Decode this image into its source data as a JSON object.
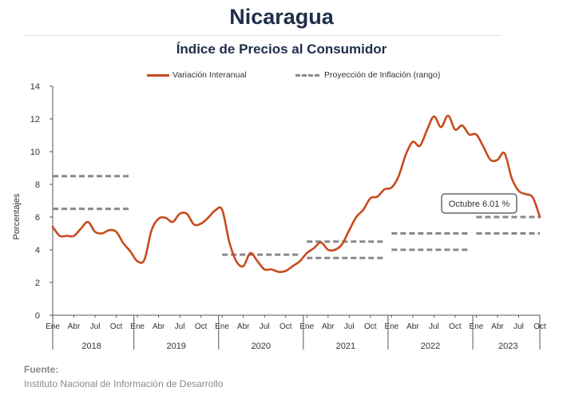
{
  "header": {
    "title": "Nicaragua"
  },
  "source": {
    "label": "Fuente:",
    "text": "Instituto Nacional de Información de  Desarrollo"
  },
  "chart_data": {
    "type": "line",
    "title": "Índice de Precios al Consumidor",
    "ylabel": "Porcentajes",
    "xlabel": "",
    "ylim": [
      0,
      14
    ],
    "yticks": [
      0,
      2,
      4,
      6,
      8,
      10,
      12,
      14
    ],
    "grid": false,
    "legend_placement": "top",
    "x_start": "2018-01",
    "x_end": "2023-10",
    "month_tick_labels": [
      "Ene",
      "Abr",
      "Jul",
      "Oct"
    ],
    "years": [
      "2018",
      "2019",
      "2020",
      "2021",
      "2022",
      "2023"
    ],
    "colors": {
      "series": "#c84a1e",
      "projection": "#888888",
      "axis": "#555555"
    },
    "series": [
      {
        "name": "Variación Interanual",
        "x": [
          "2018-01",
          "2018-02",
          "2018-03",
          "2018-04",
          "2018-05",
          "2018-06",
          "2018-07",
          "2018-08",
          "2018-09",
          "2018-10",
          "2018-11",
          "2018-12",
          "2019-01",
          "2019-02",
          "2019-03",
          "2019-04",
          "2019-05",
          "2019-06",
          "2019-07",
          "2019-08",
          "2019-09",
          "2019-10",
          "2019-11",
          "2019-12",
          "2020-01",
          "2020-02",
          "2020-03",
          "2020-04",
          "2020-05",
          "2020-06",
          "2020-07",
          "2020-08",
          "2020-09",
          "2020-10",
          "2020-11",
          "2020-12",
          "2021-01",
          "2021-02",
          "2021-03",
          "2021-04",
          "2021-05",
          "2021-06",
          "2021-07",
          "2021-08",
          "2021-09",
          "2021-10",
          "2021-11",
          "2021-12",
          "2022-01",
          "2022-02",
          "2022-03",
          "2022-04",
          "2022-05",
          "2022-06",
          "2022-07",
          "2022-08",
          "2022-09",
          "2022-10",
          "2022-11",
          "2022-12",
          "2023-01",
          "2023-02",
          "2023-03",
          "2023-04",
          "2023-05",
          "2023-06",
          "2023-07",
          "2023-08",
          "2023-09",
          "2023-10"
        ],
        "values": [
          5.4,
          4.85,
          4.85,
          4.85,
          5.3,
          5.7,
          5.1,
          5.0,
          5.2,
          5.1,
          4.4,
          3.9,
          3.3,
          3.4,
          5.2,
          5.9,
          5.95,
          5.7,
          6.2,
          6.2,
          5.55,
          5.6,
          5.95,
          6.4,
          6.45,
          4.5,
          3.3,
          3.0,
          3.8,
          3.3,
          2.8,
          2.8,
          2.65,
          2.7,
          3.0,
          3.3,
          3.8,
          4.1,
          4.45,
          4.0,
          4.0,
          4.35,
          5.2,
          6.0,
          6.45,
          7.15,
          7.25,
          7.7,
          7.8,
          8.5,
          9.8,
          10.6,
          10.35,
          11.3,
          12.15,
          11.5,
          12.2,
          11.35,
          11.6,
          11.05,
          11.05,
          10.3,
          9.5,
          9.5,
          9.9,
          8.4,
          7.6,
          7.4,
          7.2,
          6.01
        ]
      }
    ],
    "projection_label": "Proyección de Inflación (rango)",
    "projection_ranges": [
      {
        "year": "2018",
        "low": 6.5,
        "high": 8.5
      },
      {
        "year": "2020",
        "low": 3.7,
        "high": 3.7
      },
      {
        "year": "2021",
        "low": 3.5,
        "high": 4.5
      },
      {
        "year": "2022",
        "low": 4.0,
        "high": 5.0
      },
      {
        "year": "2023",
        "low": 5.0,
        "high": 6.0
      }
    ],
    "annotation": {
      "text": "Octubre 6.01 %",
      "x": "2023-10",
      "y": 6.01
    }
  }
}
